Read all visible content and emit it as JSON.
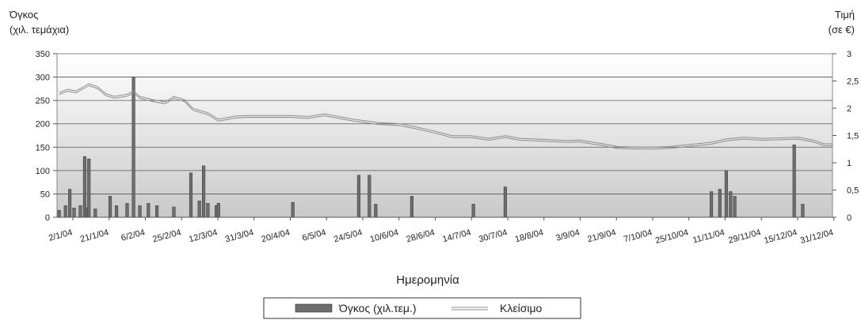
{
  "chart_data": {
    "type": "bar+line",
    "y_left_label_line1": "Όγκος",
    "y_left_label_line2": "(χιλ. τεμάχια)",
    "y_right_label_line1": "Τιμή",
    "y_right_label_line2": "(σε €)",
    "xlabel": "Ημερομηνία",
    "ylim_left": [
      0,
      350
    ],
    "ylim_right": [
      0,
      3
    ],
    "y_left_ticks": [
      "0",
      "50",
      "100",
      "150",
      "200",
      "250",
      "300",
      "350"
    ],
    "y_right_ticks": [
      "0",
      "0,5",
      "1",
      "1,5",
      "2",
      "2,5",
      "3"
    ],
    "x_tick_labels": [
      "2/1/04",
      "21/1/04",
      "6/2/04",
      "25/2/04",
      "12/3/04",
      "31/3/04",
      "20/4/04",
      "6/5/04",
      "24/5/04",
      "10/6/04",
      "28/6/04",
      "14/7/04",
      "30/7/04",
      "18/8/04",
      "3/9/04",
      "21/9/04",
      "7/10/04",
      "25/10/04",
      "11/11/04",
      "29/11/04",
      "15/12/04",
      "31/12/04"
    ],
    "grid": "horizontal",
    "background": "vertical gradient grey",
    "legend_position": "bottom-center",
    "series": [
      {
        "name": "Όγκος (χιλ.τεμ.)",
        "kind": "bar",
        "axis": "left",
        "color": "#6e6e6e",
        "x": [
          "2/1/04",
          "5/1/04",
          "7/1/04",
          "9/1/04",
          "12/1/04",
          "14/1/04",
          "15/1/04",
          "16/1/04",
          "19/1/04",
          "26/1/04",
          "29/1/04",
          "3/2/04",
          "6/2/04",
          "9/2/04",
          "13/2/04",
          "17/2/04",
          "25/2/04",
          "4/3/04",
          "8/3/04",
          "10/3/04",
          "12/3/04",
          "16/3/04",
          "17/3/04",
          "21/4/04",
          "22/5/04",
          "27/5/04",
          "30/5/04",
          "16/6/04",
          "15/7/04",
          "30/7/04",
          "4/11/04",
          "8/11/04",
          "11/11/04",
          "13/11/04",
          "15/11/04",
          "13/12/04",
          "17/12/04"
        ],
        "values": [
          15,
          25,
          60,
          20,
          25,
          130,
          20,
          125,
          18,
          45,
          25,
          30,
          300,
          25,
          30,
          25,
          22,
          95,
          35,
          110,
          30,
          25,
          30,
          32,
          90,
          90,
          28,
          45,
          28,
          65,
          55,
          60,
          100,
          55,
          45,
          155,
          28
        ]
      },
      {
        "name": "Κλείσιμο",
        "kind": "line",
        "axis": "right",
        "color": "#8c8c8c",
        "x": [
          "2/1/04",
          "6/1/04",
          "10/1/04",
          "16/1/04",
          "20/1/04",
          "24/1/04",
          "28/1/04",
          "3/2/04",
          "6/2/04",
          "9/2/04",
          "15/2/04",
          "21/2/04",
          "25/2/04",
          "1/3/04",
          "5/3/04",
          "12/3/04",
          "17/3/04",
          "25/3/04",
          "31/3/04",
          "8/4/04",
          "20/4/04",
          "28/4/04",
          "6/5/04",
          "14/5/04",
          "20/5/04",
          "31/5/04",
          "10/6/04",
          "18/6/04",
          "28/6/04",
          "5/7/04",
          "14/7/04",
          "22/7/04",
          "30/7/04",
          "6/8/04",
          "18/8/04",
          "28/8/04",
          "3/9/04",
          "14/9/04",
          "21/9/04",
          "1/10/04",
          "7/10/04",
          "15/10/04",
          "25/10/04",
          "4/11/04",
          "11/11/04",
          "19/11/04",
          "29/11/04",
          "7/12/04",
          "15/12/04",
          "22/12/04",
          "27/12/04",
          "31/12/04"
        ],
        "values": [
          2.27,
          2.33,
          2.3,
          2.43,
          2.38,
          2.25,
          2.2,
          2.24,
          2.3,
          2.2,
          2.14,
          2.1,
          2.2,
          2.14,
          1.98,
          1.9,
          1.78,
          1.84,
          1.85,
          1.85,
          1.85,
          1.83,
          1.88,
          1.82,
          1.78,
          1.72,
          1.7,
          1.64,
          1.55,
          1.48,
          1.48,
          1.43,
          1.48,
          1.43,
          1.41,
          1.39,
          1.4,
          1.33,
          1.28,
          1.27,
          1.27,
          1.28,
          1.32,
          1.36,
          1.42,
          1.45,
          1.43,
          1.44,
          1.45,
          1.4,
          1.33,
          1.33
        ]
      }
    ]
  }
}
